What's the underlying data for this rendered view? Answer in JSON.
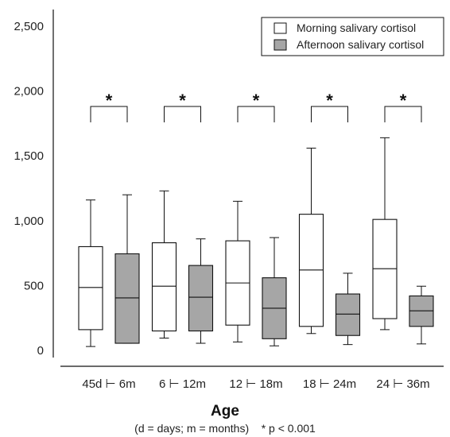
{
  "chart_data": {
    "type": "box",
    "categories": [
      "45d ⊢ 6m",
      "6 ⊢ 12m",
      "12 ⊢ 18m",
      "18 ⊢ 24m",
      "24 ⊢ 36m"
    ],
    "xlabel": "Age",
    "xlabel_note": "(d = days; m = months)",
    "significance_note": "* p < 0.001",
    "significance_marker": "*",
    "ylim": [
      0,
      2600
    ],
    "yticks": [
      0,
      500,
      1000,
      1500,
      2000,
      2500
    ],
    "ytick_labels": [
      "0",
      "500",
      "1,000",
      "1,500",
      "2,000",
      "2,500"
    ],
    "legend_position": "top-right",
    "series": [
      {
        "name": "Morning salivary cortisol",
        "color": "#ffffff",
        "boxes": [
          {
            "min": 30,
            "q1": 160,
            "median": 485,
            "q3": 800,
            "max": 1160
          },
          {
            "min": 95,
            "q1": 150,
            "median": 495,
            "q3": 830,
            "max": 1230
          },
          {
            "min": 65,
            "q1": 195,
            "median": 520,
            "q3": 845,
            "max": 1150
          },
          {
            "min": 130,
            "q1": 185,
            "median": 620,
            "q3": 1050,
            "max": 1560
          },
          {
            "min": 160,
            "q1": 245,
            "median": 630,
            "q3": 1010,
            "max": 1640
          }
        ]
      },
      {
        "name": "Afternoon salivary cortisol",
        "color": "#a6a6a6",
        "boxes": [
          {
            "min": 55,
            "q1": 55,
            "median": 405,
            "q3": 745,
            "max": 1200
          },
          {
            "min": 55,
            "q1": 150,
            "median": 410,
            "q3": 655,
            "max": 860
          },
          {
            "min": 35,
            "q1": 90,
            "median": 325,
            "q3": 560,
            "max": 870
          },
          {
            "min": 45,
            "q1": 115,
            "median": 280,
            "q3": 435,
            "max": 595
          },
          {
            "min": 50,
            "q1": 185,
            "median": 305,
            "q3": 420,
            "max": 495
          }
        ]
      }
    ],
    "significance_brackets": [
      {
        "category_index": 0,
        "label": "*"
      },
      {
        "category_index": 1,
        "label": "*"
      },
      {
        "category_index": 2,
        "label": "*"
      },
      {
        "category_index": 3,
        "label": "*"
      },
      {
        "category_index": 4,
        "label": "*"
      }
    ]
  }
}
